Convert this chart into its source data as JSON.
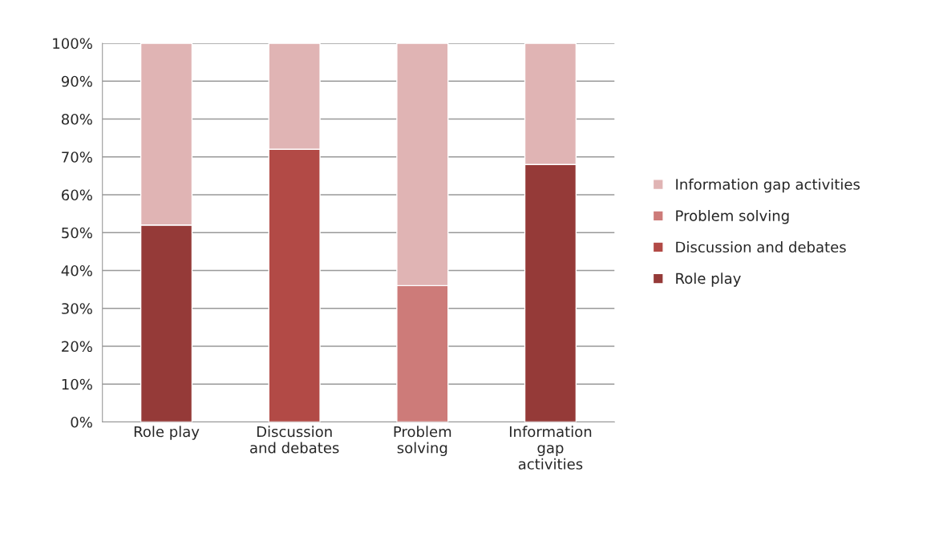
{
  "chart_data": {
    "type": "bar",
    "stacked": true,
    "categories": [
      "Role play",
      "Discussion\nand debates",
      "Problem\nsolving",
      "Information\ngap\nactivities"
    ],
    "series": [
      {
        "name": "Role play",
        "color": "#953a38",
        "values": [
          52,
          null,
          null,
          68
        ]
      },
      {
        "name": "Discussion and debates",
        "color": "#b24a46",
        "values": [
          null,
          72,
          null,
          null
        ]
      },
      {
        "name": "Problem solving",
        "color": "#cd7b79",
        "values": [
          null,
          null,
          36,
          null
        ]
      },
      {
        "name": "Information gap activities",
        "color": "#e0b4b4",
        "values": [
          48,
          28,
          64,
          32
        ]
      }
    ],
    "ylim": [
      0,
      100
    ],
    "yticks": [
      {
        "value": 0,
        "label": "0%"
      },
      {
        "value": 10,
        "label": "10%"
      },
      {
        "value": 20,
        "label": "20%"
      },
      {
        "value": 30,
        "label": "30%"
      },
      {
        "value": 40,
        "label": "40%"
      },
      {
        "value": 50,
        "label": "50%"
      },
      {
        "value": 60,
        "label": "60%"
      },
      {
        "value": 70,
        "label": "70%"
      },
      {
        "value": 80,
        "label": "80%"
      },
      {
        "value": 90,
        "label": "90%"
      },
      {
        "value": 100,
        "label": "100%"
      }
    ],
    "grid": "y",
    "legend": "right"
  }
}
